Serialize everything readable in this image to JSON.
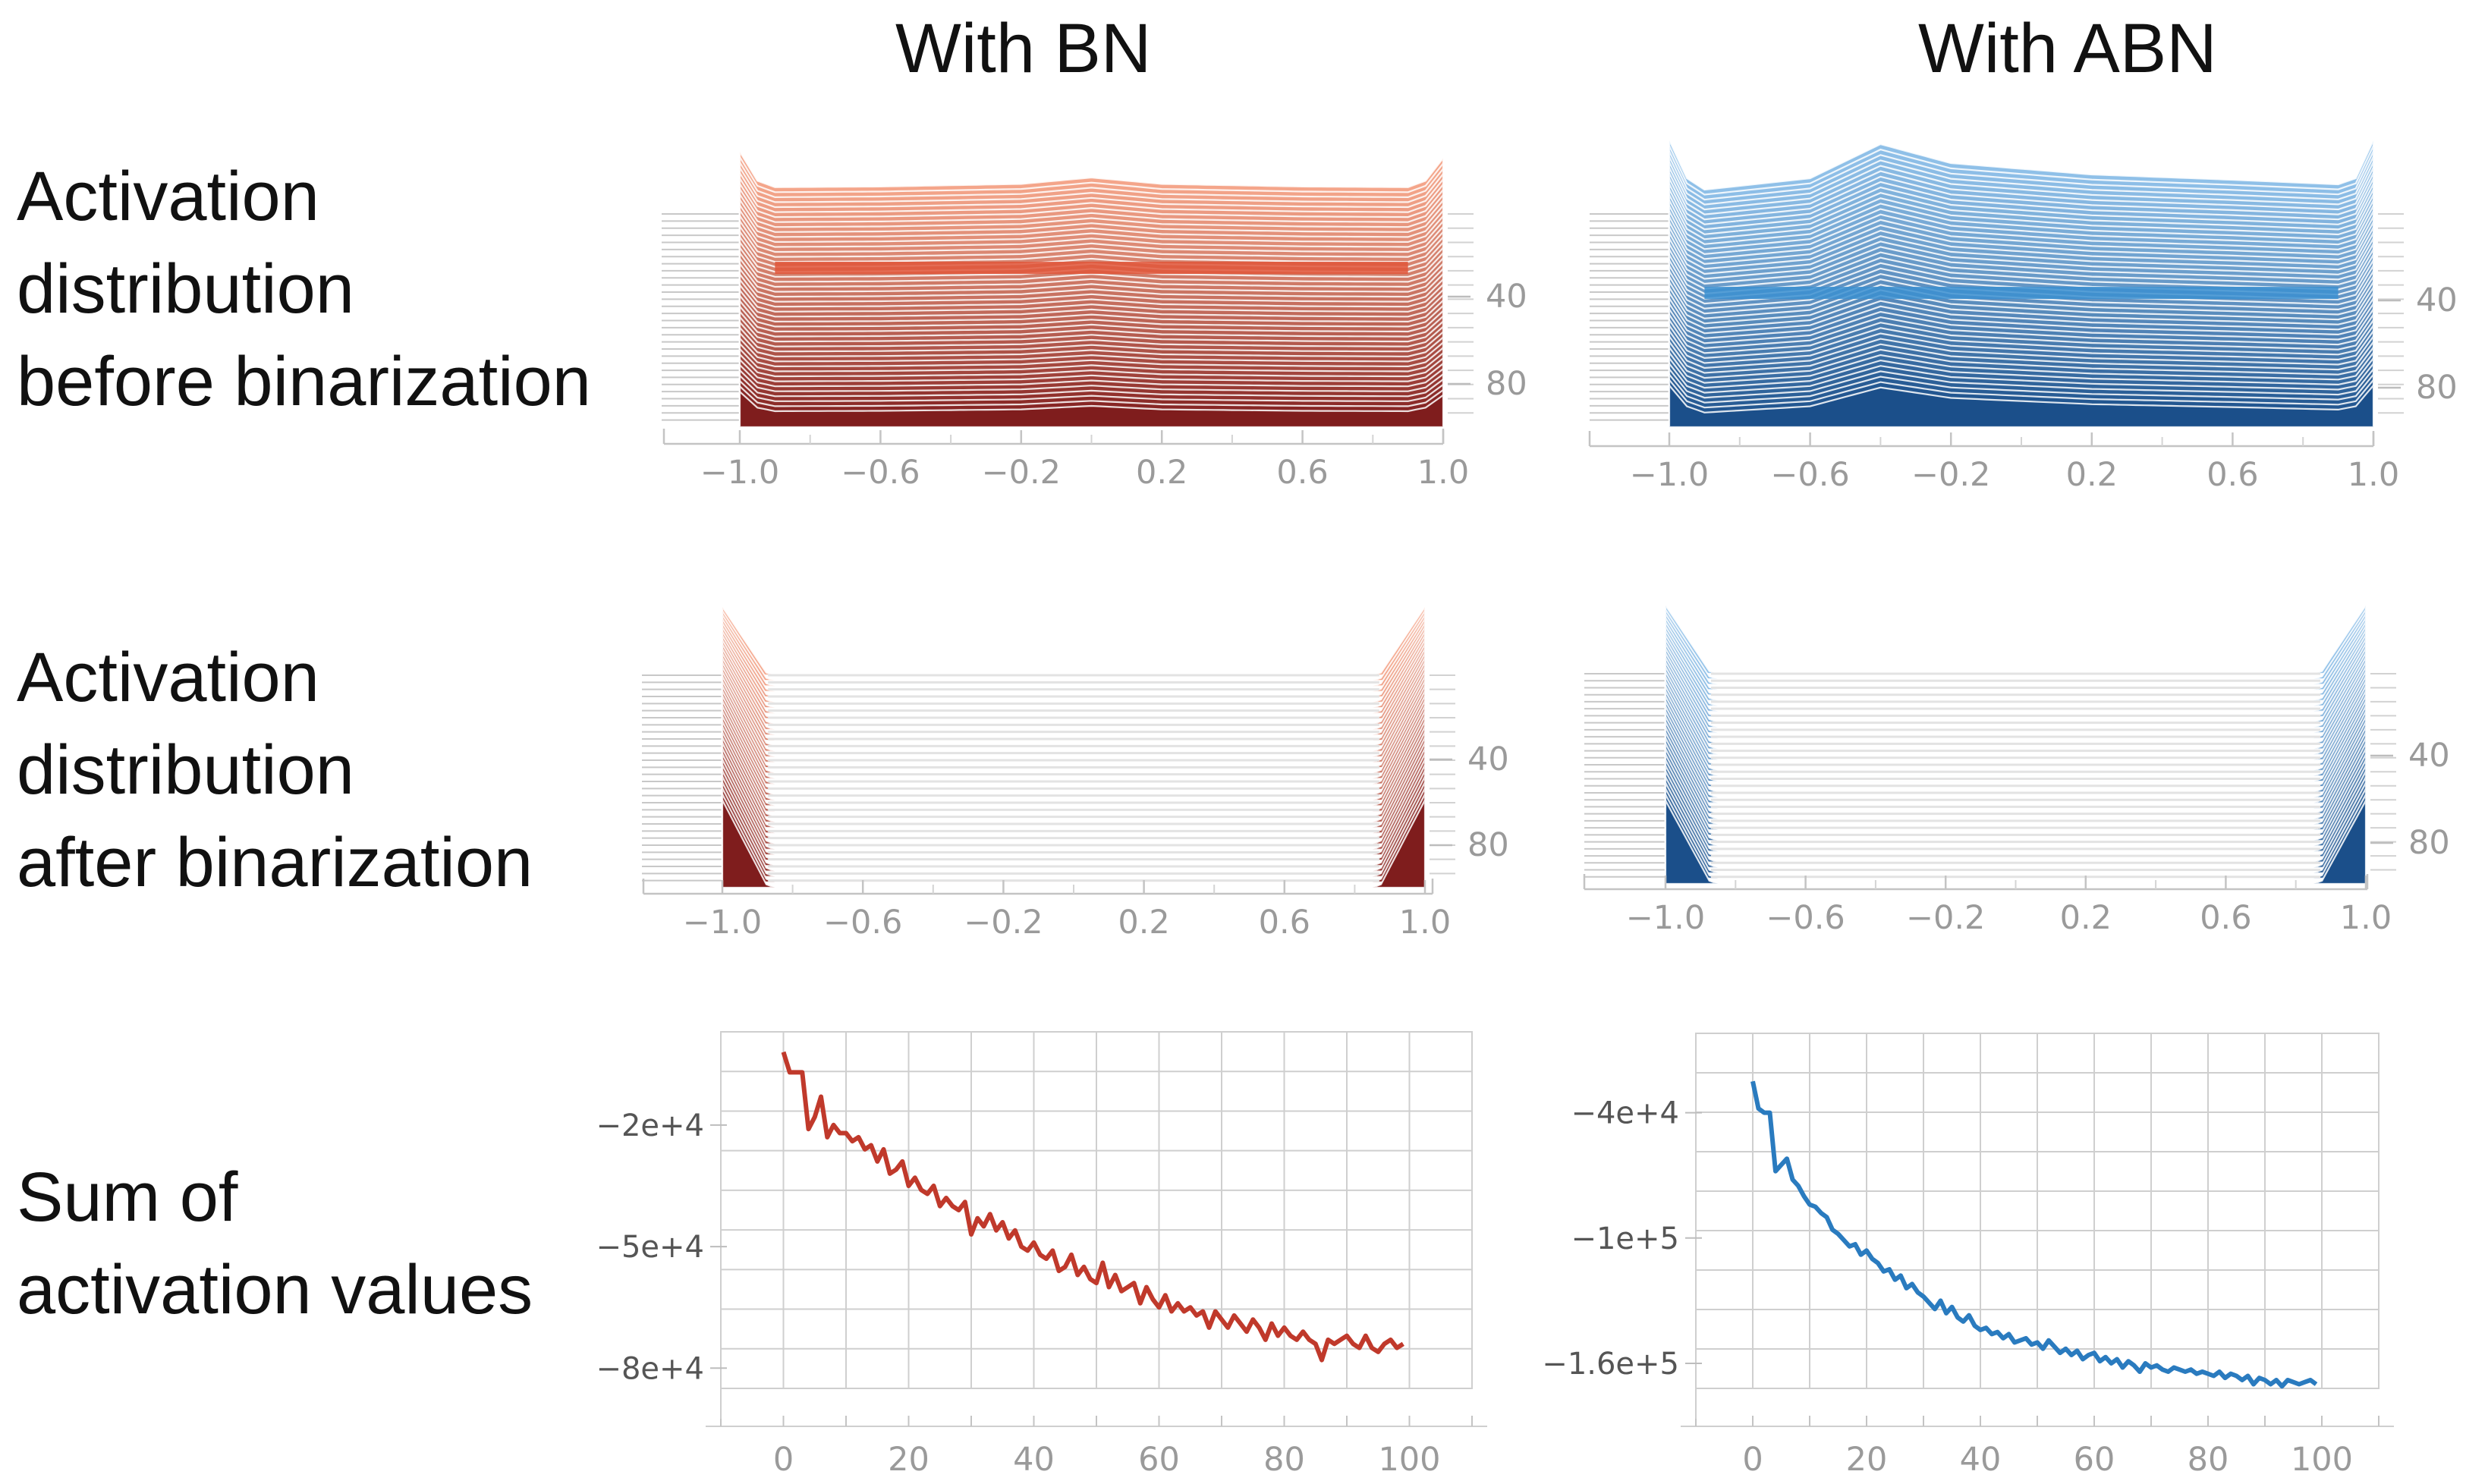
{
  "column_titles": {
    "left": "With BN",
    "right": "With ABN"
  },
  "row_labels": {
    "row1": [
      "Activation",
      "distribution",
      "before binarization"
    ],
    "row2": [
      "Activation",
      "distribution",
      "after binarization"
    ],
    "row3": [
      "Sum of",
      "activation values"
    ]
  },
  "colors": {
    "bn_light": "#f4a58a",
    "bn_mid": "#e0563a",
    "bn_dark": "#7f1d1d",
    "bn_line": "#c0392b",
    "abn_light": "#8fc0e8",
    "abn_mid": "#3b8fd0",
    "abn_dark": "#1b4f8a",
    "abn_line": "#2a7bbf"
  },
  "chart_data": [
    {
      "id": "bn-before",
      "type": "area",
      "title": "Activation distribution before binarization (With BN)",
      "x_ticks": [
        "−1.0",
        "−0.6",
        "−0.2",
        "0.2",
        "0.6",
        "1.0"
      ],
      "depth_ticks": [
        "40",
        "80"
      ],
      "xlim": [
        -1.0,
        1.0
      ],
      "front_profile": {
        "x": [
          -1.0,
          -0.95,
          -0.9,
          -0.6,
          -0.2,
          0.0,
          0.2,
          0.6,
          0.9,
          0.95,
          1.0
        ],
        "y": [
          1.0,
          0.55,
          0.45,
          0.46,
          0.5,
          0.6,
          0.5,
          0.46,
          0.45,
          0.55,
          0.9
        ]
      }
    },
    {
      "id": "abn-before",
      "type": "area",
      "title": "Activation distribution before binarization (With ABN)",
      "x_ticks": [
        "−1.0",
        "−0.6",
        "−0.2",
        "0.2",
        "0.6",
        "1.0"
      ],
      "depth_ticks": [
        "40",
        "80"
      ],
      "xlim": [
        -1.0,
        1.0
      ],
      "front_profile": {
        "x": [
          -1.0,
          -0.95,
          -0.9,
          -0.6,
          -0.4,
          -0.2,
          0.2,
          0.6,
          0.9,
          0.95,
          1.0
        ],
        "y": [
          1.0,
          0.5,
          0.35,
          0.5,
          0.95,
          0.7,
          0.55,
          0.48,
          0.42,
          0.5,
          1.0
        ]
      }
    },
    {
      "id": "bn-after",
      "type": "area",
      "title": "Activation distribution after binarization (With BN)",
      "x_ticks": [
        "−1.0",
        "−0.6",
        "−0.2",
        "0.2",
        "0.6",
        "1.0"
      ],
      "depth_ticks": [
        "40",
        "80"
      ],
      "xlim": [
        -1.0,
        1.0
      ],
      "front_profile": {
        "x": [
          -1.0,
          -0.87,
          0.87,
          1.0
        ],
        "y": [
          1.0,
          0.0,
          0.0,
          1.0
        ]
      }
    },
    {
      "id": "abn-after",
      "type": "area",
      "title": "Activation distribution after binarization (With ABN)",
      "x_ticks": [
        "−1.0",
        "−0.6",
        "−0.2",
        "0.2",
        "0.6",
        "1.0"
      ],
      "depth_ticks": [
        "40",
        "80"
      ],
      "xlim": [
        -1.0,
        1.0
      ],
      "front_profile": {
        "x": [
          -1.0,
          -0.87,
          0.87,
          1.0
        ],
        "y": [
          1.0,
          0.0,
          0.0,
          1.0
        ]
      }
    },
    {
      "id": "bn-sum",
      "type": "line",
      "title": "Sum of activation values (With BN)",
      "x_ticks": [
        "0",
        "20",
        "40",
        "60",
        "80",
        "100"
      ],
      "y_ticks": [
        {
          "value": -20000,
          "label": "−2e+4"
        },
        {
          "value": -50000,
          "label": "−5e+4"
        },
        {
          "value": -80000,
          "label": "−8e+4"
        }
      ],
      "xlim": [
        -10,
        110
      ],
      "ylim": [
        -85000,
        3000
      ],
      "series": [
        {
          "name": "With BN",
          "x": [
            0,
            1,
            2,
            3,
            4,
            5,
            6,
            7,
            8,
            9,
            10,
            11,
            12,
            13,
            14,
            15,
            16,
            17,
            18,
            19,
            20,
            21,
            22,
            23,
            24,
            25,
            26,
            27,
            28,
            29,
            30,
            31,
            32,
            33,
            34,
            35,
            36,
            37,
            38,
            39,
            40,
            41,
            42,
            43,
            44,
            45,
            46,
            47,
            48,
            49,
            50,
            51,
            52,
            53,
            54,
            55,
            56,
            57,
            58,
            59,
            60,
            61,
            62,
            63,
            64,
            65,
            66,
            67,
            68,
            69,
            70,
            71,
            72,
            73,
            74,
            75,
            76,
            77,
            78,
            79,
            80,
            81,
            82,
            83,
            84,
            85,
            86,
            87,
            88,
            89,
            90,
            91,
            92,
            93,
            94,
            95,
            96,
            97,
            98,
            99
          ],
          "y": [
            -2000,
            -7000,
            -7000,
            -7000,
            -21000,
            -18000,
            -13000,
            -23000,
            -20000,
            -22000,
            -22000,
            -24000,
            -23000,
            -26000,
            -25000,
            -29000,
            -26000,
            -32000,
            -31000,
            -29000,
            -35000,
            -33000,
            -36000,
            -37000,
            -35000,
            -40000,
            -38000,
            -40000,
            -41000,
            -39000,
            -47000,
            -43000,
            -45000,
            -42000,
            -46000,
            -44000,
            -48000,
            -46000,
            -50000,
            -51000,
            -49000,
            -52000,
            -53000,
            -51000,
            -56000,
            -55000,
            -52000,
            -57000,
            -55000,
            -58000,
            -59000,
            -54000,
            -60000,
            -57000,
            -61000,
            -60000,
            -59000,
            -64000,
            -60000,
            -63000,
            -65000,
            -62000,
            -66000,
            -64000,
            -66000,
            -65000,
            -67000,
            -66000,
            -70000,
            -66000,
            -68000,
            -70000,
            -67000,
            -69000,
            -71000,
            -68000,
            -70000,
            -73000,
            -69000,
            -72000,
            -70000,
            -72000,
            -73000,
            -71000,
            -73000,
            -74000,
            -78000,
            -73000,
            -74000,
            -73000,
            -72000,
            -74000,
            -75000,
            -72000,
            -75000,
            -76000,
            -74000,
            -73000,
            -75000,
            -74000
          ]
        }
      ]
    },
    {
      "id": "abn-sum",
      "type": "line",
      "title": "Sum of activation values (With ABN)",
      "x_ticks": [
        "0",
        "20",
        "40",
        "60",
        "80",
        "100"
      ],
      "y_ticks": [
        {
          "value": -40000,
          "label": "−4e+4"
        },
        {
          "value": -100000,
          "label": "−1e+5"
        },
        {
          "value": -160000,
          "label": "−1.6e+5"
        }
      ],
      "xlim": [
        -10,
        110
      ],
      "ylim": [
        -172000,
        -2000
      ],
      "series": [
        {
          "name": "With ABN",
          "x": [
            0,
            1,
            2,
            3,
            4,
            5,
            6,
            7,
            8,
            9,
            10,
            11,
            12,
            13,
            14,
            15,
            16,
            17,
            18,
            19,
            20,
            21,
            22,
            23,
            24,
            25,
            26,
            27,
            28,
            29,
            30,
            31,
            32,
            33,
            34,
            35,
            36,
            37,
            38,
            39,
            40,
            41,
            42,
            43,
            44,
            45,
            46,
            47,
            48,
            49,
            50,
            51,
            52,
            53,
            54,
            55,
            56,
            57,
            58,
            59,
            60,
            61,
            62,
            63,
            64,
            65,
            66,
            67,
            68,
            69,
            70,
            71,
            72,
            73,
            74,
            75,
            76,
            77,
            78,
            79,
            80,
            81,
            82,
            83,
            84,
            85,
            86,
            87,
            88,
            89,
            90,
            91,
            92,
            93,
            94,
            95,
            96,
            97,
            98,
            99
          ],
          "y": [
            -25000,
            -38000,
            -40000,
            -40000,
            -68000,
            -65000,
            -62000,
            -72000,
            -75000,
            -80000,
            -84000,
            -85000,
            -88000,
            -90000,
            -96000,
            -98000,
            -101000,
            -104000,
            -103000,
            -108000,
            -106000,
            -110000,
            -112000,
            -116000,
            -115000,
            -120000,
            -118000,
            -124000,
            -122000,
            -126000,
            -128000,
            -131000,
            -134000,
            -130000,
            -136000,
            -133000,
            -138000,
            -140000,
            -137000,
            -142000,
            -144000,
            -143000,
            -146000,
            -145000,
            -148000,
            -146000,
            -150000,
            -149000,
            -148000,
            -151000,
            -150000,
            -153000,
            -149000,
            -152000,
            -155000,
            -153000,
            -156000,
            -154000,
            -158000,
            -156000,
            -155000,
            -159000,
            -157000,
            -160000,
            -158000,
            -162000,
            -159000,
            -161000,
            -164000,
            -160000,
            -162000,
            -161000,
            -163000,
            -164000,
            -162000,
            -163000,
            -164000,
            -163000,
            -165000,
            -164000,
            -165000,
            -166000,
            -164000,
            -167000,
            -165000,
            -166000,
            -168000,
            -166000,
            -170000,
            -167000,
            -168000,
            -170000,
            -168000,
            -171000,
            -168000,
            -169000,
            -170000,
            -169000,
            -168000,
            -170000
          ]
        }
      ]
    }
  ]
}
